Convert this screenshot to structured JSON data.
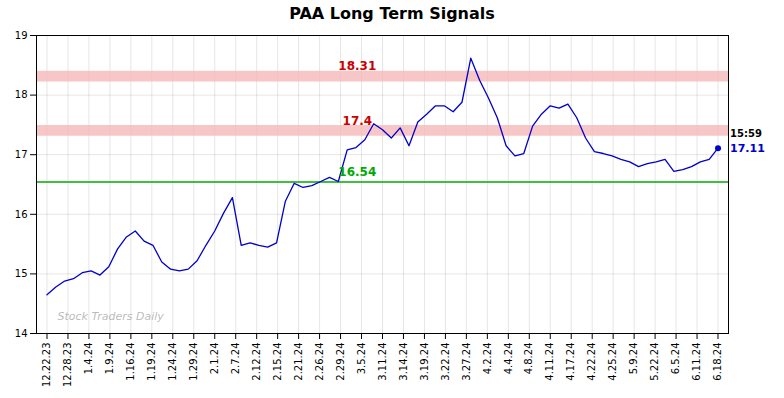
{
  "chart_data": {
    "type": "line",
    "title": "PAA Long Term Signals",
    "x": [
      0,
      0.4211,
      0.8421,
      1.2632,
      1.6842,
      2.1053,
      2.5263,
      2.9474,
      3.3684,
      3.7895,
      4.2105,
      4.6316,
      5.0526,
      5.4737,
      5.8947,
      6.3158,
      6.7368,
      7.1579,
      7.5789,
      8,
      8.4211,
      8.8421,
      9.2632,
      9.6842,
      10.1053,
      10.5263,
      10.9474,
      11.3684,
      11.7895,
      12.2105,
      12.6316,
      13.0526,
      13.4737,
      13.8947,
      14.3158,
      14.7368,
      15.1579,
      15.5789,
      16,
      16.4211,
      16.8421,
      17.2632,
      17.6842,
      18.1053,
      18.5263,
      18.9474,
      19.3684,
      19.7895,
      20.2105,
      20.6316,
      21.0526,
      21.4737,
      21.8947,
      22.3158,
      22.7368,
      23.1579,
      23.5789,
      24,
      24.4211,
      24.8421,
      25.2632,
      25.6842,
      26.1053,
      26.5263,
      26.9474,
      27.3684,
      27.7895,
      28.2105,
      28.6316,
      29.0526,
      29.4737,
      29.8947,
      30.3158,
      30.7368,
      31.1579,
      31.5789,
      32
    ],
    "values": [
      14.65,
      14.78,
      14.88,
      14.92,
      15.02,
      15.05,
      14.98,
      15.12,
      15.42,
      15.62,
      15.72,
      15.55,
      15.48,
      15.2,
      15.08,
      15.05,
      15.08,
      15.22,
      15.48,
      15.72,
      16.02,
      16.28,
      15.48,
      15.52,
      15.48,
      15.45,
      15.52,
      16.22,
      16.52,
      16.45,
      16.48,
      16.55,
      16.62,
      16.55,
      17.08,
      17.12,
      17.25,
      17.52,
      17.42,
      17.28,
      17.45,
      17.15,
      17.55,
      17.68,
      17.82,
      17.82,
      17.72,
      17.88,
      18.62,
      18.25,
      17.95,
      17.62,
      17.15,
      16.98,
      17.02,
      17.48,
      17.68,
      17.82,
      17.78,
      17.85,
      17.62,
      17.28,
      17.05,
      17.02,
      16.98,
      16.92,
      16.88,
      16.8,
      16.85,
      16.88,
      16.92,
      16.72,
      16.75,
      16.8,
      16.88,
      16.92,
      17.11
    ],
    "color": "#0000cc",
    "xlim": [
      -0.5,
      32.5
    ],
    "xticks": [
      {
        "value": 0,
        "label": "12.22.23"
      },
      {
        "value": 1,
        "label": "12.28.23"
      },
      {
        "value": 2,
        "label": "1.4.24"
      },
      {
        "value": 3,
        "label": "1.9.24"
      },
      {
        "value": 4,
        "label": "1.16.24"
      },
      {
        "value": 5,
        "label": "1.19.24"
      },
      {
        "value": 6,
        "label": "1.24.24"
      },
      {
        "value": 7,
        "label": "1.29.24"
      },
      {
        "value": 8,
        "label": "2.1.24"
      },
      {
        "value": 9,
        "label": "2.7.24"
      },
      {
        "value": 10,
        "label": "2.12.24"
      },
      {
        "value": 11,
        "label": "2.15.24"
      },
      {
        "value": 12,
        "label": "2.21.24"
      },
      {
        "value": 13,
        "label": "2.26.24"
      },
      {
        "value": 14,
        "label": "2.29.24"
      },
      {
        "value": 15,
        "label": "3.5.24"
      },
      {
        "value": 16,
        "label": "3.11.24"
      },
      {
        "value": 17,
        "label": "3.14.24"
      },
      {
        "value": 18,
        "label": "3.19.24"
      },
      {
        "value": 19,
        "label": "3.22.24"
      },
      {
        "value": 20,
        "label": "3.27.24"
      },
      {
        "value": 21,
        "label": "4.2.24"
      },
      {
        "value": 22,
        "label": "4.4.24"
      },
      {
        "value": 23,
        "label": "4.8.24"
      },
      {
        "value": 24,
        "label": "4.11.24"
      },
      {
        "value": 25,
        "label": "4.17.24"
      },
      {
        "value": 26,
        "label": "4.22.24"
      },
      {
        "value": 27,
        "label": "4.25.24"
      },
      {
        "value": 28,
        "label": "5.9.24"
      },
      {
        "value": 29,
        "label": "5.22.24"
      },
      {
        "value": 30,
        "label": "6.5.24"
      },
      {
        "value": 31,
        "label": "6.11.24"
      },
      {
        "value": 32,
        "label": "6.18.24"
      }
    ],
    "ylim": [
      14,
      19
    ],
    "yticks": [
      14,
      15,
      16,
      17,
      18,
      19
    ],
    "grid": true,
    "bands": [
      {
        "y": 18.31,
        "color": "#f5b8b8"
      },
      {
        "y": 17.4,
        "color": "#f5b8b8"
      }
    ],
    "hline": {
      "y": 16.54,
      "color": "#00aa00"
    },
    "annotations": [
      {
        "text": "18.31",
        "x": 14.8,
        "y": 18.31,
        "color": "#cc0000"
      },
      {
        "text": "17.4",
        "x": 14.8,
        "y": 17.4,
        "color": "#cc0000"
      },
      {
        "text": "16.54",
        "x": 14.8,
        "y": 16.54,
        "color": "#00aa00"
      }
    ],
    "watermark": {
      "text": "Stock Traders Daily",
      "x": 0.5,
      "y": 14.28
    },
    "last_label": {
      "time": "15:59",
      "price": "17.11"
    }
  }
}
